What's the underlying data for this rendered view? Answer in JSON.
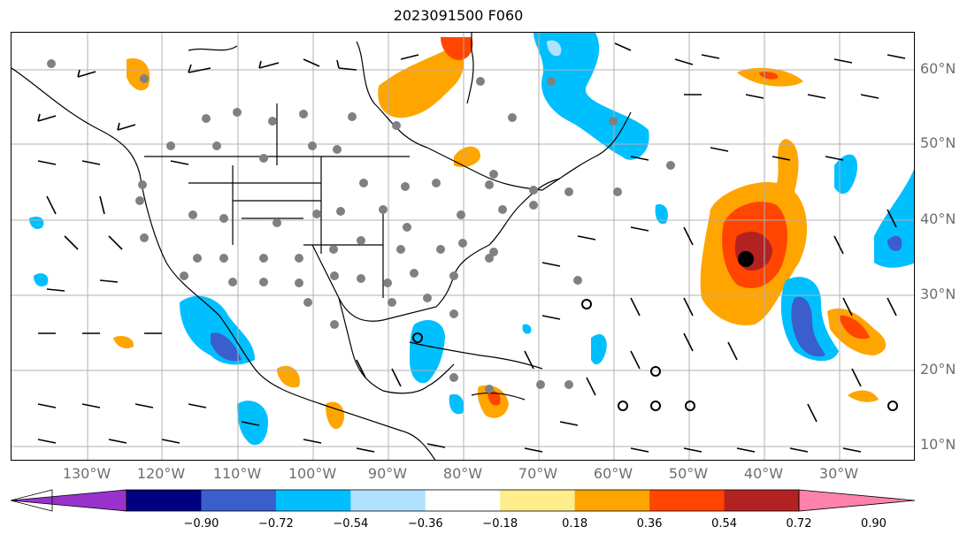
{
  "title": "2023091500 F060",
  "lat_labels": [
    "60°N",
    "50°N",
    "40°N",
    "30°N",
    "20°N",
    "10°N"
  ],
  "lon_labels": [
    "130°W",
    "120°W",
    "110°W",
    "100°W",
    "90°W",
    "80°W",
    "70°W",
    "60°W",
    "50°W",
    "40°W",
    "30°W"
  ],
  "colorbar": {
    "colors": [
      "#9932CC",
      "#000080",
      "#3A5FCD",
      "#00BFFF",
      "#B0E2FF",
      "#FFFFFF",
      "#FFEC8B",
      "#FFA500",
      "#FF4500",
      "#B22222",
      "#FF82AB"
    ],
    "ticks": [
      "−0.90",
      "−0.72",
      "−0.54",
      "−0.36",
      "−0.18",
      "0.18",
      "0.36",
      "0.54",
      "0.72",
      "0.90"
    ]
  },
  "colors": {
    "gridline": "#b0b0b0",
    "coastline": "#000000",
    "station_dot": "#808080",
    "low_center": "#000000"
  }
}
